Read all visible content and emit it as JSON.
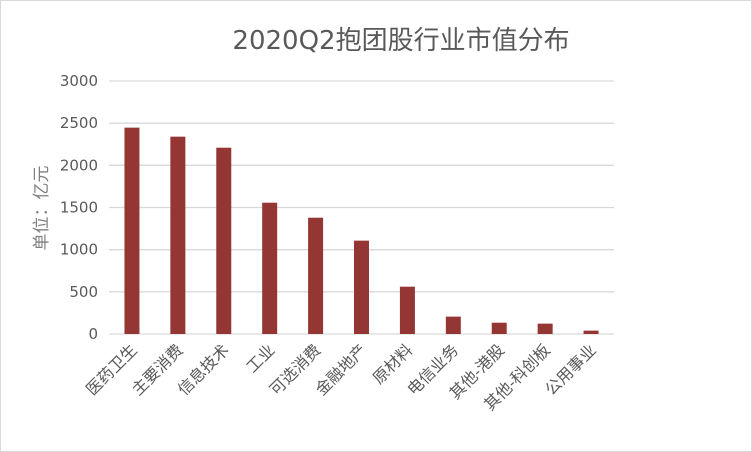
{
  "chart_data": {
    "type": "bar",
    "title": "2020Q2抱团股行业市值分布",
    "xlabel": "",
    "ylabel": "单位：亿元",
    "categories": [
      "医药卫生",
      "主要消费",
      "信息技术",
      "工业",
      "可选消费",
      "金融地产",
      "原材料",
      "电信业务",
      "其他-港股",
      "其他-科创板",
      "公用事业"
    ],
    "values": [
      2447,
      2340,
      2209,
      1557,
      1379,
      1107,
      561,
      206,
      134,
      123,
      40
    ],
    "ylim": [
      0,
      3000
    ],
    "yticks": [
      "0",
      "500",
      "1000",
      "1500",
      "2000",
      "2500",
      "3000"
    ],
    "grid": true,
    "legend": "none",
    "colors": {
      "bar": "#943634",
      "grid": "#d9d9d9",
      "text": "#595959"
    }
  }
}
